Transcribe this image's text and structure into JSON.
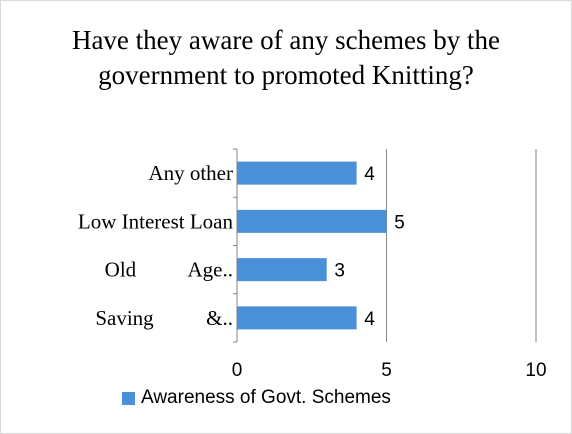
{
  "chart_data": {
    "type": "bar",
    "orientation": "horizontal",
    "title": "Have they aware of any schemes by the government to promoted Knitting?",
    "categories": [
      "Any other",
      "Low Interest Loan",
      "Old          Age..",
      "Saving          &.."
    ],
    "series": [
      {
        "name": "Awareness of Govt. Schemes",
        "values": [
          4,
          5,
          3,
          4
        ],
        "color": "#4a90d9"
      }
    ],
    "xlim": [
      0,
      10
    ],
    "xticks": [
      "0",
      "5",
      "10"
    ],
    "grid": "vertical",
    "legend": "bottom",
    "data_labels": true
  }
}
